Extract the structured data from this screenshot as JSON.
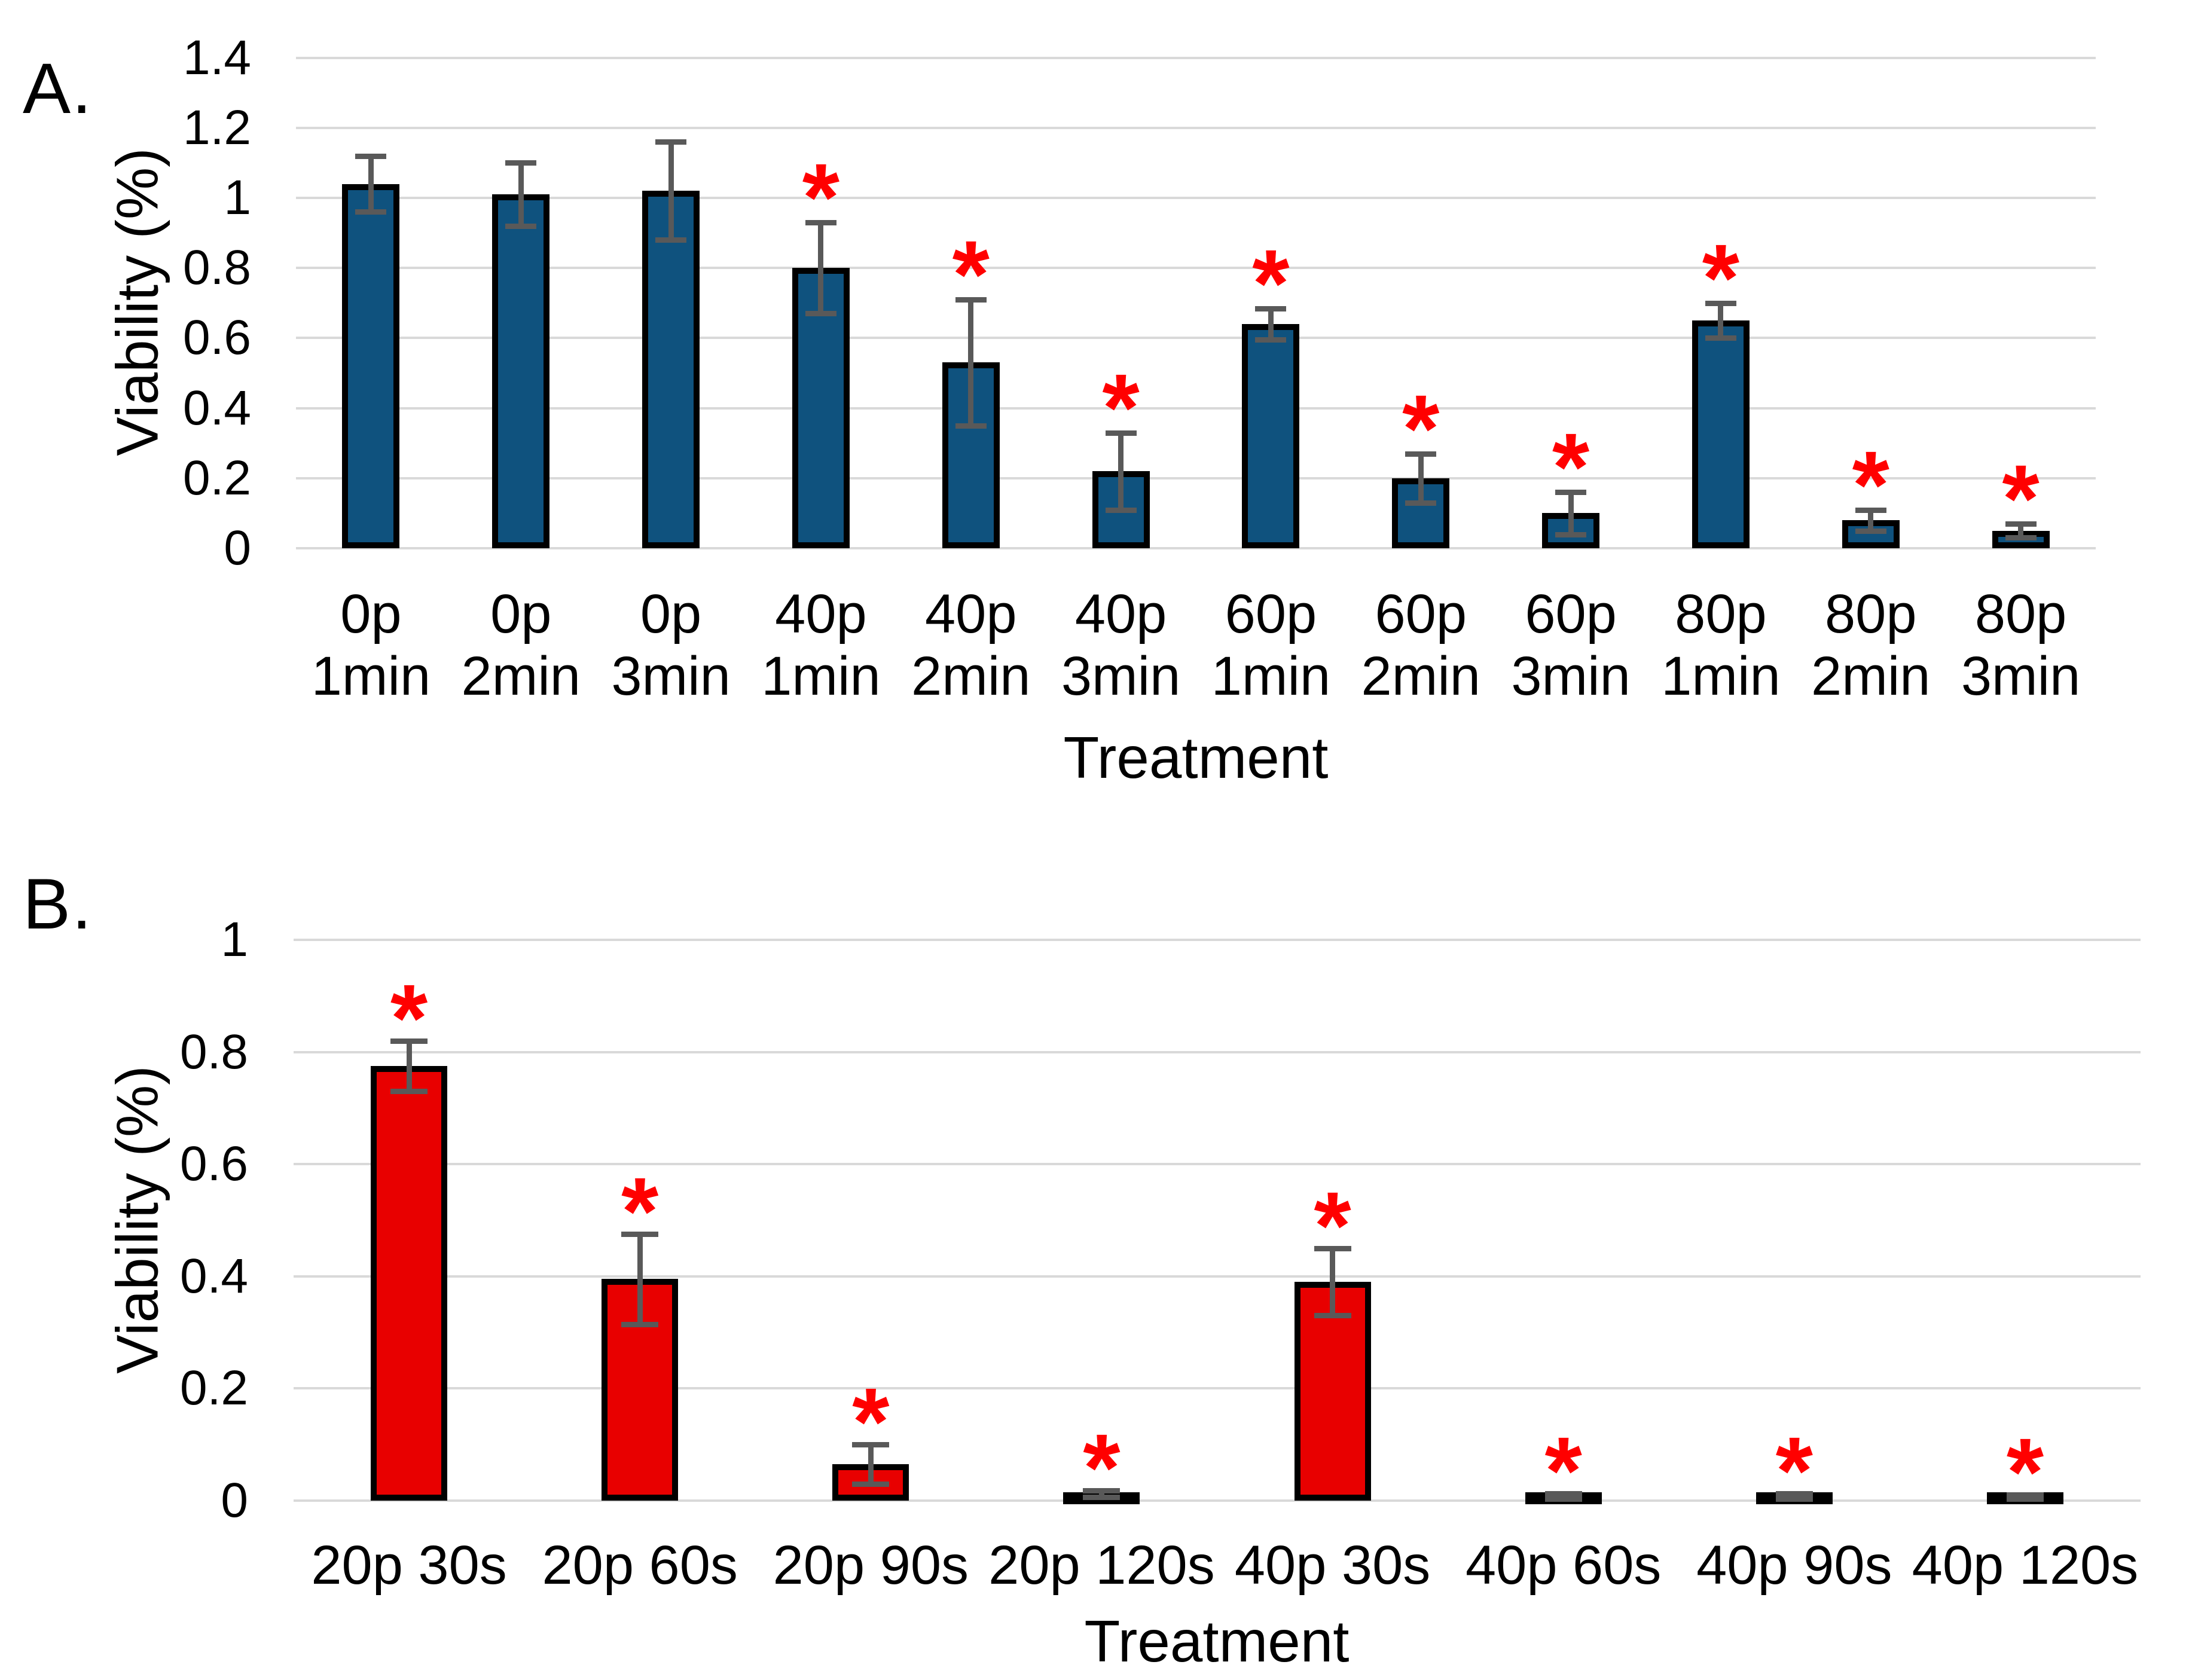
{
  "figure": {
    "background_color": "#ffffff"
  },
  "chart_data": [
    {
      "type": "bar",
      "panel_label": "A.",
      "title": "",
      "xlabel": "Treatment",
      "ylabel": "Viability (%)",
      "ylim": [
        0,
        1.4
      ],
      "yticks": [
        0,
        0.2,
        0.4,
        0.6,
        0.8,
        1,
        1.2,
        1.4
      ],
      "ytick_labels": [
        "0",
        "0.2",
        "0.4",
        "0.6",
        "0.8",
        "1",
        "1.2",
        "1.4"
      ],
      "grid": true,
      "legend": false,
      "bar_color": "#0f527e",
      "bar_border_color": "#000000",
      "error_bar_color": "#595959",
      "gridline_color": "#d9d9d9",
      "sig_marker": "*",
      "sig_marker_color": "#ff0000",
      "categories": [
        "0p 1min",
        "0p 2min",
        "0p 3min",
        "40p 1min",
        "40p 2min",
        "40p 3min",
        "60p 1min",
        "60p 2min",
        "60p 3min",
        "80p 1min",
        "80p 2min",
        "80p 3min"
      ],
      "category_label_lines": [
        [
          "0p",
          "1min"
        ],
        [
          "0p",
          "2min"
        ],
        [
          "0p",
          "3min"
        ],
        [
          "40p",
          "1min"
        ],
        [
          "40p",
          "2min"
        ],
        [
          "40p",
          "3min"
        ],
        [
          "60p",
          "1min"
        ],
        [
          "60p",
          "2min"
        ],
        [
          "60p",
          "3min"
        ],
        [
          "80p",
          "1min"
        ],
        [
          "80p",
          "2min"
        ],
        [
          "80p",
          "3min"
        ]
      ],
      "values": [
        1.04,
        1.01,
        1.02,
        0.8,
        0.53,
        0.22,
        0.64,
        0.2,
        0.1,
        0.65,
        0.08,
        0.05
      ],
      "errors": [
        0.08,
        0.09,
        0.14,
        0.13,
        0.18,
        0.11,
        0.045,
        0.07,
        0.06,
        0.05,
        0.03,
        0.02
      ],
      "significant": [
        false,
        false,
        false,
        true,
        true,
        true,
        true,
        true,
        true,
        true,
        true,
        true
      ]
    },
    {
      "type": "bar",
      "panel_label": "B.",
      "title": "",
      "xlabel": "Treatment",
      "ylabel": "Viability (%)",
      "ylim": [
        0,
        1
      ],
      "yticks": [
        0,
        0.2,
        0.4,
        0.6,
        0.8,
        1
      ],
      "ytick_labels": [
        "0",
        "0.2",
        "0.4",
        "0.6",
        "0.8",
        "1"
      ],
      "grid": true,
      "legend": false,
      "bar_color": "#e80000",
      "bar_border_color": "#000000",
      "error_bar_color": "#595959",
      "gridline_color": "#d9d9d9",
      "sig_marker": "*",
      "sig_marker_color": "#ff0000",
      "categories": [
        "20p 30s",
        "20p 60s",
        "20p 90s",
        "20p 120s",
        "40p 30s",
        "40p 60s",
        "40p 90s",
        "40p 120s"
      ],
      "category_label_lines": [
        [
          "20p 30s"
        ],
        [
          "20p 60s"
        ],
        [
          "20p 90s"
        ],
        [
          "20p 120s"
        ],
        [
          "40p 30s"
        ],
        [
          "40p 60s"
        ],
        [
          "40p 90s"
        ],
        [
          "40p 120s"
        ]
      ],
      "values": [
        0.775,
        0.395,
        0.065,
        0.012,
        0.39,
        0.008,
        0.008,
        0.007
      ],
      "errors": [
        0.045,
        0.08,
        0.035,
        0.006,
        0.06,
        0.005,
        0.005,
        0.004
      ],
      "significant": [
        true,
        true,
        true,
        true,
        true,
        true,
        true,
        true
      ]
    }
  ]
}
